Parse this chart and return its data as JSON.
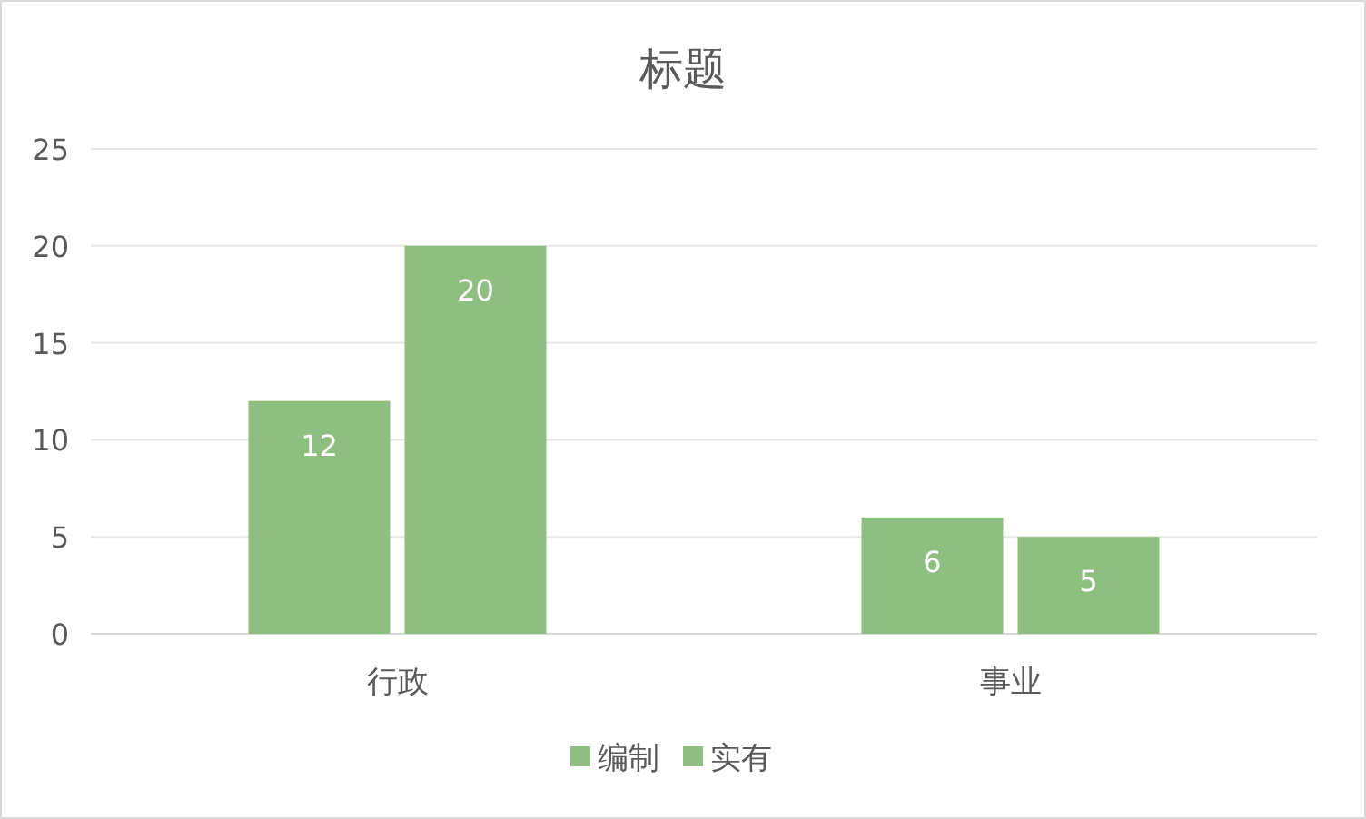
{
  "chart_data": {
    "type": "bar",
    "title": "标题",
    "categories": [
      "行政",
      "事业"
    ],
    "series": [
      {
        "name": "编制",
        "color": "#8fbf80",
        "values": [
          12,
          6
        ]
      },
      {
        "name": "实有",
        "color": "#8fbf80",
        "values": [
          20,
          5
        ]
      }
    ],
    "ylim": [
      0,
      25
    ],
    "yticks": [
      0,
      5,
      10,
      15,
      20,
      25
    ],
    "grid": "y",
    "legend": "bottom",
    "data_labels": true
  }
}
